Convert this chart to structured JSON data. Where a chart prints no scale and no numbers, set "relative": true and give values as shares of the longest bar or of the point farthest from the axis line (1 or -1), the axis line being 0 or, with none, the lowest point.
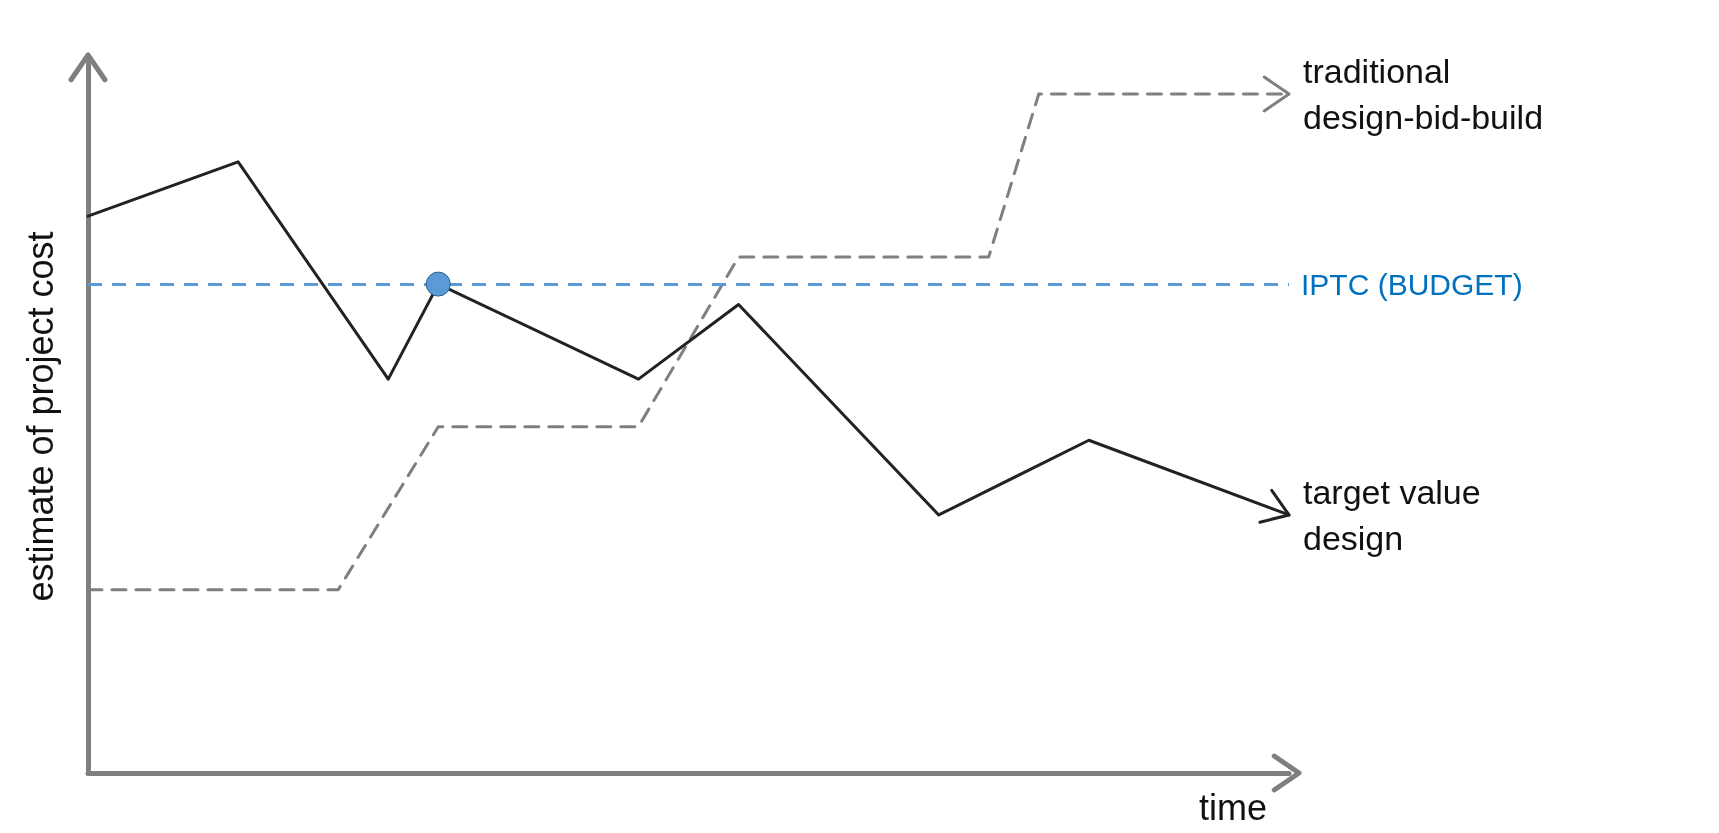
{
  "chart_data": {
    "type": "line",
    "relative": true,
    "xlabel": "time",
    "ylabel": "estimate of project cost",
    "tick_labels": false,
    "grid": false,
    "legend": "right",
    "marker": "none",
    "categories": [
      null,
      null,
      null,
      null,
      null,
      null,
      null,
      null,
      null,
      null,
      null,
      null,
      null,
      null,
      null,
      null,
      null,
      null,
      null,
      null,
      null,
      null,
      null,
      null,
      null
    ],
    "series": [
      {
        "name": "traditional design-bid-build",
        "color": "#7f7f7f",
        "line_style": "dashed",
        "values": [
          0.27,
          null,
          null,
          null,
          null,
          0.27,
          null,
          0.51,
          null,
          null,
          null,
          0.51,
          null,
          0.76,
          null,
          null,
          null,
          null,
          0.76,
          1.0,
          null,
          null,
          null,
          null,
          1.0
        ]
      },
      {
        "name": "target value design",
        "color": "#222222",
        "line_style": "solid",
        "values": [
          0.82,
          null,
          null,
          0.9,
          null,
          null,
          0.58,
          0.72,
          null,
          null,
          null,
          0.58,
          null,
          0.69,
          null,
          null,
          null,
          0.38,
          null,
          null,
          0.49,
          null,
          null,
          null,
          0.38
        ]
      }
    ],
    "ref_lines": [
      {
        "axis": "y",
        "value": 0.72,
        "label": "IPTC (BUDGET)",
        "color": "#5b9bd5",
        "line_style": "dashed"
      }
    ]
  }
}
